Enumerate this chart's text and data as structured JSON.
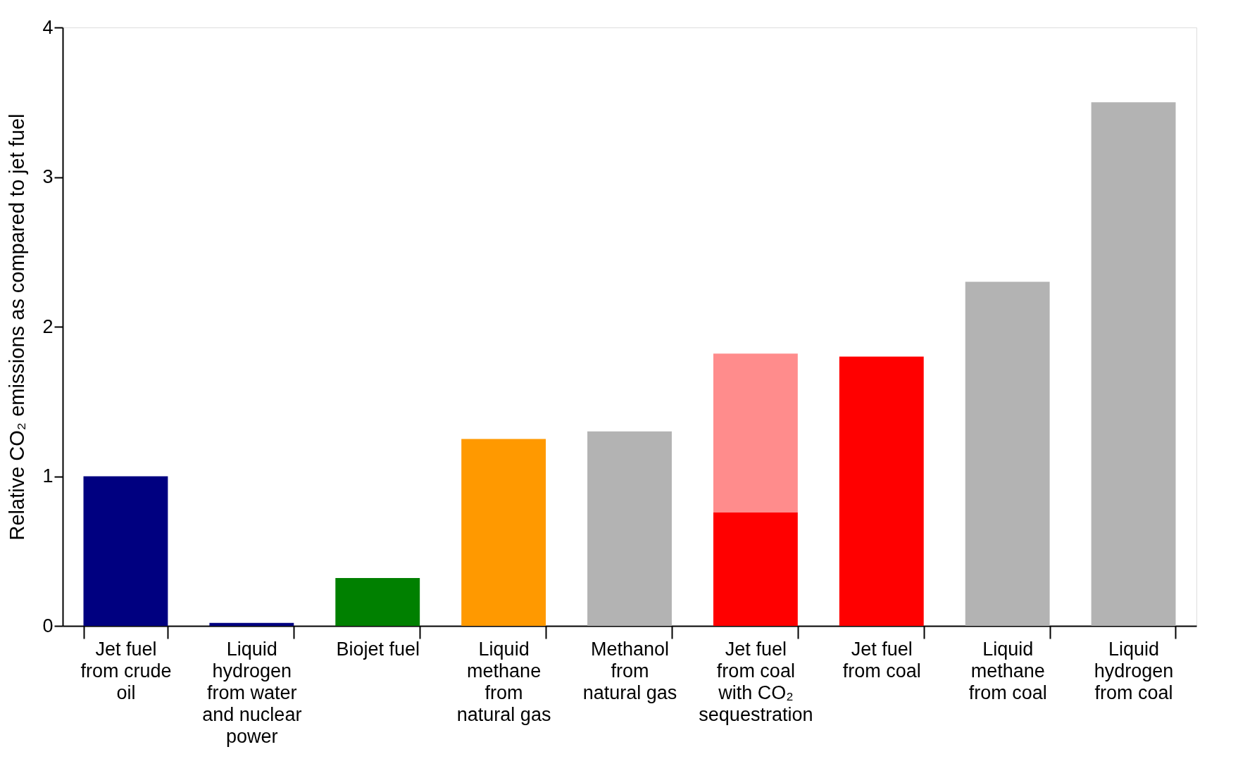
{
  "chart_data": {
    "type": "bar",
    "ylabel": "Relative CO₂ emissions as compared to jet fuel",
    "categories": [
      "Jet fuel from crude oil",
      "Liquid hydrogen from water and nuclear power",
      "Biojet fuel",
      "Liquid methane from natural gas",
      "Methanol from natural gas",
      "Jet fuel from coal with CO₂ sequestration",
      "Jet fuel from coal",
      "Liquid methane from coal",
      "Liquid hydrogen from coal"
    ],
    "stacked": true,
    "series": [
      {
        "values": [
          1.0,
          0.02,
          0.32,
          1.25,
          1.3,
          0.76,
          1.8,
          2.3,
          3.5
        ],
        "colors": [
          "#000080",
          "#000080",
          "#008000",
          "#ff9900",
          "#b3b3b3",
          "#ff0000",
          "#ff0000",
          "#b3b3b3",
          "#b3b3b3"
        ]
      },
      {
        "values": [
          null,
          null,
          null,
          null,
          null,
          1.06,
          null,
          null,
          null
        ],
        "color": "#ff8c8c"
      }
    ],
    "ylim": [
      0,
      4
    ],
    "yticks": [
      0,
      1,
      2,
      3,
      4
    ],
    "grid": false
  }
}
